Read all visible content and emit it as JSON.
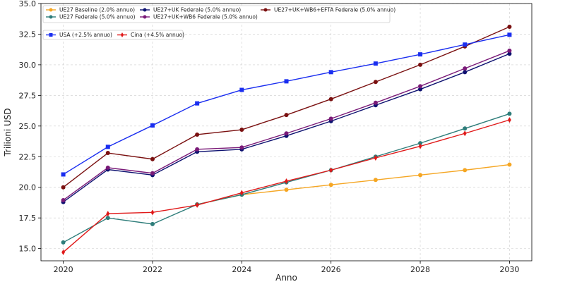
{
  "chart_data": {
    "type": "line",
    "title": "",
    "xlabel": "Anno",
    "ylabel": "Trilioni USD",
    "xlim": [
      2019.5,
      2030.5
    ],
    "ylim": [
      14.0,
      35.0
    ],
    "xticks": [
      2020,
      2022,
      2024,
      2026,
      2028,
      2030
    ],
    "yticks": [
      15.0,
      17.5,
      20.0,
      22.5,
      25.0,
      27.5,
      30.0,
      32.5,
      35.0
    ],
    "ytick_labels": [
      "15.0",
      "17.5",
      "20.0",
      "22.5",
      "25.0",
      "27.5",
      "30.0",
      "32.5",
      "35.0"
    ],
    "grid": true,
    "x": [
      2020,
      2021,
      2022,
      2023,
      2024,
      2025,
      2026,
      2027,
      2028,
      2029,
      2030
    ],
    "legend_rows": [
      [
        {
          "series": 0,
          "label": "UE27 Baseline (2.0% annuo)"
        },
        {
          "series": 2,
          "label": "UE27+UK Federale (5.0% annuo)"
        },
        {
          "series": 4,
          "label": "UE27+UK+WB6+EFTA Federale (5.0% annuo)"
        }
      ],
      [
        {
          "series": 1,
          "label": "UE27 Federale (5.0% annuo)"
        },
        {
          "series": 3,
          "label": "UE27+UK+WB6 Federale (5.0% annuo)"
        }
      ]
    ],
    "legend2": [
      {
        "series": 5,
        "label": "USA (+2.5% annuo)"
      },
      {
        "series": 6,
        "label": "Cina (+4.5% annuo)"
      }
    ],
    "series": [
      {
        "name": "UE27 Baseline (2.0% annuo)",
        "color": "#f5a623",
        "marker": "circle",
        "values": [
          null,
          null,
          null,
          18.6,
          19.4,
          19.8,
          20.2,
          20.6,
          21.0,
          21.4,
          21.85
        ]
      },
      {
        "name": "UE27 Federale (5.0% annuo)",
        "color": "#2e7d7a",
        "marker": "circle",
        "values": [
          15.5,
          17.5,
          17.0,
          18.6,
          19.4,
          20.4,
          21.4,
          22.5,
          23.6,
          24.8,
          26.0
        ]
      },
      {
        "name": "UE27+UK Federale (5.0% annuo)",
        "color": "#0d1170",
        "marker": "circle",
        "values": [
          18.8,
          21.45,
          21.0,
          22.9,
          23.1,
          24.2,
          25.4,
          26.7,
          28.0,
          29.4,
          30.9
        ]
      },
      {
        "name": "UE27+UK+WB6 Federale (5.0% annuo)",
        "color": "#7a1a78",
        "marker": "circle",
        "values": [
          18.95,
          21.6,
          21.15,
          23.1,
          23.25,
          24.4,
          25.6,
          26.9,
          28.25,
          29.7,
          31.15
        ]
      },
      {
        "name": "UE27+UK+WB6+EFTA Federale (5.0% annuo)",
        "color": "#7a1010",
        "marker": "circle",
        "values": [
          20.0,
          22.8,
          22.3,
          24.3,
          24.7,
          25.9,
          27.2,
          28.6,
          30.0,
          31.5,
          33.1
        ]
      },
      {
        "name": "USA (+2.5% annuo)",
        "color": "#1a2ef0",
        "marker": "square",
        "values": [
          21.05,
          23.3,
          25.05,
          26.85,
          27.95,
          28.65,
          29.4,
          30.1,
          30.85,
          31.65,
          32.45
        ]
      },
      {
        "name": "Cina (+4.5% annuo)",
        "color": "#e01818",
        "marker": "diamond",
        "values": [
          14.7,
          17.85,
          17.95,
          18.55,
          19.55,
          20.5,
          21.4,
          22.4,
          23.35,
          24.4,
          25.5
        ]
      }
    ]
  }
}
